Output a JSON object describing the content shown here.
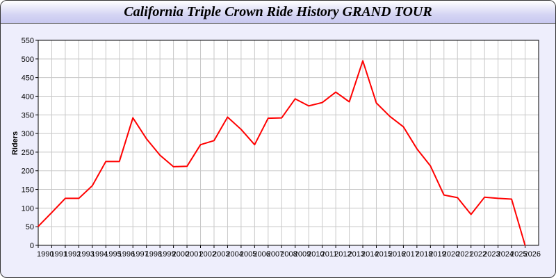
{
  "chart_data": {
    "type": "line",
    "title": "California Triple Crown Ride History GRAND TOUR",
    "xlabel": "",
    "ylabel": "Riders",
    "xlim": [
      1990,
      2027
    ],
    "ylim": [
      0,
      550
    ],
    "yticks": [
      0,
      50,
      100,
      150,
      200,
      250,
      300,
      350,
      400,
      450,
      500,
      550
    ],
    "grid": true,
    "line_color": "#ff0000",
    "x": [
      1990,
      1991,
      1992,
      1993,
      1994,
      1995,
      1996,
      1997,
      1998,
      1999,
      2000,
      2001,
      2002,
      2003,
      2004,
      2005,
      2006,
      2007,
      2008,
      2009,
      2010,
      2011,
      2012,
      2013,
      2014,
      2015,
      2016,
      2017,
      2018,
      2019,
      2020,
      2021,
      2022,
      2023,
      2024,
      2025,
      2026
    ],
    "series": [
      {
        "values": [
          51,
          88,
          126,
          126,
          160,
          225,
          225,
          342,
          286,
          242,
          211,
          212,
          270,
          281,
          344,
          311,
          270,
          341,
          342,
          393,
          374,
          383,
          411,
          385,
          495,
          382,
          346,
          318,
          259,
          213,
          135,
          128,
          83,
          129,
          126,
          124,
          0
        ]
      }
    ]
  }
}
